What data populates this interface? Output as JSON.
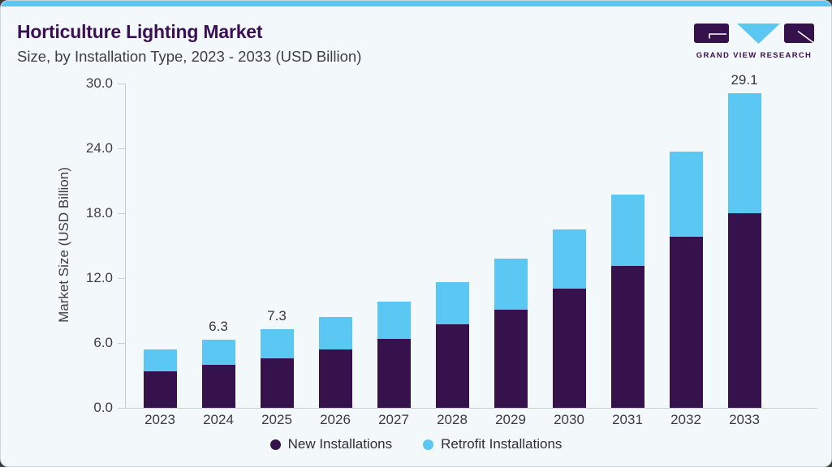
{
  "header": {
    "title": "Horticulture Lighting Market",
    "subtitle": "Size, by Installation Type, 2023 - 2033 (USD Billion)",
    "logo_text": "GRAND VIEW RESEARCH"
  },
  "chart_data": {
    "type": "bar",
    "stacked": true,
    "title": "Horticulture Lighting Market Size, by Installation Type, 2023 - 2033 (USD Billion)",
    "ylabel": "Market Size (USD Billion)",
    "xlabel": "",
    "ylim": [
      0,
      30
    ],
    "yticks": [
      0,
      6,
      12,
      18,
      24,
      30
    ],
    "ytick_labels": [
      "0.0",
      "6.0",
      "12.0",
      "18.0",
      "24.0",
      "30.0"
    ],
    "grid": false,
    "legend_position": "bottom",
    "categories": [
      "2023",
      "2024",
      "2025",
      "2026",
      "2027",
      "2028",
      "2029",
      "2030",
      "2031",
      "2032",
      "2033"
    ],
    "series": [
      {
        "name": "New Installations",
        "color": "#35124B",
        "values": [
          3.4,
          4.0,
          4.6,
          5.4,
          6.4,
          7.7,
          9.1,
          11.0,
          13.1,
          15.8,
          18.0
        ]
      },
      {
        "name": "Retrofit Installations",
        "color": "#5BC8F3",
        "values": [
          2.0,
          2.3,
          2.7,
          3.0,
          3.4,
          3.9,
          4.7,
          5.5,
          6.6,
          7.9,
          11.1
        ]
      }
    ],
    "totals": [
      5.4,
      6.3,
      7.3,
      8.4,
      9.8,
      11.6,
      13.8,
      16.5,
      19.7,
      23.7,
      29.1
    ],
    "bar_labels": [
      "",
      "6.3",
      "7.3",
      "",
      "",
      "",
      "",
      "",
      "",
      "",
      "29.1"
    ]
  },
  "colors": {
    "accent_bar": "#5BC8F3",
    "card_background": "#F3F8FB",
    "title": "#3A1053",
    "text": "#3E3E46",
    "axis_line": "#C4CDD5",
    "new_installations": "#35124B",
    "retrofit_installations": "#5BC8F3"
  }
}
